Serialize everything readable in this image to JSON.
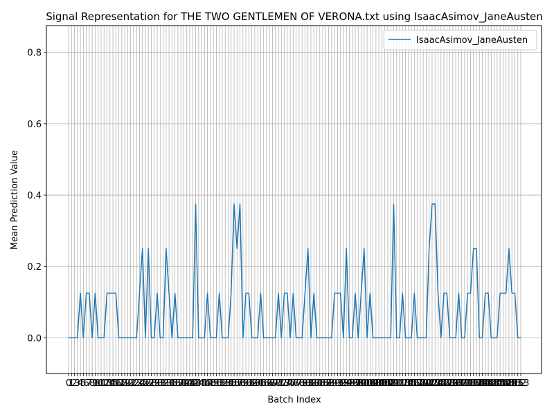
{
  "chart_data": {
    "type": "line",
    "title": "Signal Representation for THE TWO GENTLEMEN OF VERONA.txt using IsaacAsimov_JaneAusten",
    "xlabel": "Batch Index",
    "ylabel": "Mean Prediction Value",
    "x_tick_labels_visible": "0 1 2 3 4 5 6 7 8 9 10 ... 153 (overlapping labels at every integer)",
    "x_range": [
      0,
      153
    ],
    "ylim": [
      -0.1,
      0.875
    ],
    "y_ticks": [
      "0.0",
      "0.2",
      "0.4",
      "0.6",
      "0.8"
    ],
    "y_tick_values": [
      0.0,
      0.2,
      0.4,
      0.6,
      0.8
    ],
    "grid": true,
    "legend_position": "top-right",
    "series": [
      {
        "name": "IsaacAsimov_JaneAusten",
        "color": "#1f77b4",
        "values": [
          0,
          0,
          0,
          0,
          0.125,
          0,
          0.125,
          0.125,
          0,
          0.125,
          0,
          0,
          0,
          0.125,
          0.125,
          0.125,
          0.125,
          0,
          0,
          0,
          0,
          0,
          0,
          0,
          0.125,
          0.25,
          0,
          0.25,
          0,
          0,
          0.125,
          0,
          0,
          0.25,
          0.125,
          0,
          0.125,
          0,
          0,
          0,
          0,
          0,
          0,
          0.375,
          0,
          0,
          0,
          0.125,
          0,
          0,
          0,
          0.125,
          0,
          0,
          0,
          0.125,
          0.375,
          0.25,
          0.375,
          0,
          0.125,
          0.125,
          0,
          0,
          0,
          0.125,
          0,
          0,
          0,
          0,
          0,
          0.125,
          0,
          0.125,
          0.125,
          0,
          0.125,
          0,
          0,
          0,
          0.125,
          0.25,
          0,
          0.125,
          0,
          0,
          0,
          0,
          0,
          0,
          0.125,
          0.125,
          0.125,
          0,
          0.25,
          0,
          0,
          0.125,
          0,
          0.125,
          0.25,
          0,
          0.125,
          0,
          0,
          0,
          0,
          0,
          0,
          0,
          0.375,
          0,
          0,
          0.125,
          0,
          0,
          0,
          0.125,
          0,
          0,
          0,
          0,
          0.25,
          0.375,
          0.375,
          0.125,
          0,
          0.125,
          0.125,
          0,
          0,
          0,
          0.125,
          0,
          0,
          0.125,
          0.125,
          0.25,
          0.25,
          0,
          0,
          0.125,
          0.125,
          0,
          0,
          0,
          0.125,
          0.125,
          0.125,
          0.25,
          0.125,
          0.125,
          0,
          0
        ]
      }
    ]
  }
}
